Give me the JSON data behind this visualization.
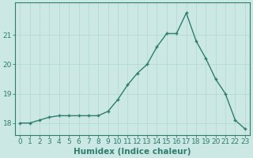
{
  "x": [
    0,
    1,
    2,
    3,
    4,
    5,
    6,
    7,
    8,
    9,
    10,
    11,
    12,
    13,
    14,
    15,
    16,
    17,
    18,
    19,
    20,
    21,
    22,
    23
  ],
  "y": [
    18.0,
    18.0,
    18.1,
    18.2,
    18.25,
    18.25,
    18.25,
    18.25,
    18.25,
    18.4,
    18.8,
    19.3,
    19.7,
    20.0,
    20.6,
    21.05,
    21.05,
    21.75,
    20.8,
    20.2,
    19.5,
    19.0,
    18.1,
    17.8
  ],
  "line_color": "#2e7d6e",
  "marker": "+",
  "marker_size": 3.5,
  "bg_color": "#cce8e4",
  "grid_color": "#b0d8d0",
  "xlabel": "Humidex (Indice chaleur)",
  "yticks": [
    18,
    19,
    20,
    21
  ],
  "xticks": [
    0,
    1,
    2,
    3,
    4,
    5,
    6,
    7,
    8,
    9,
    10,
    11,
    12,
    13,
    14,
    15,
    16,
    17,
    18,
    19,
    20,
    21,
    22,
    23
  ],
  "ylim": [
    17.6,
    22.1
  ],
  "xlim": [
    -0.5,
    23.5
  ],
  "axis_label_fontsize": 7.5,
  "tick_fontsize": 6.5,
  "linewidth": 1.0,
  "marker_linewidth": 1.0
}
